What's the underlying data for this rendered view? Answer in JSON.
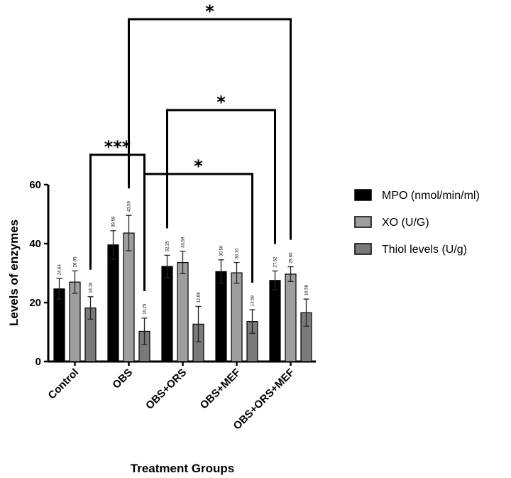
{
  "chart_data": {
    "type": "bar",
    "xlabel": "Treatment Groups",
    "ylabel": "Levels of enzymes",
    "ylim": [
      0,
      60
    ],
    "yticks": [
      "0",
      "20",
      "40",
      "60"
    ],
    "categories": [
      "Control",
      "OBS",
      "OBS+ORS",
      "OBS+MEF",
      "OBS+ORS+MEF"
    ],
    "series": [
      {
        "name": "MPO (nmol/min/ml)",
        "color": "#000000",
        "values": [
          24.64,
          39.58,
          32.25,
          30.5,
          27.52
        ],
        "errors": [
          3.5,
          4.8,
          3.8,
          4.0,
          3.2
        ],
        "labels": [
          "24.64",
          "39.58",
          "32.25",
          "30.50",
          "27.52"
        ]
      },
      {
        "name": "XO (U/G)",
        "color": "#9e9e9e",
        "values": [
          26.95,
          43.59,
          33.59,
          30.1,
          29.65
        ],
        "errors": [
          3.8,
          6.0,
          3.8,
          3.5,
          2.5
        ],
        "labels": [
          "26.95",
          "43.59",
          "33.59",
          "30.10",
          "29.65"
        ]
      },
      {
        "name": "Thiol levels (U/g)",
        "color": "#7a7a7a",
        "values": [
          18.18,
          10.25,
          12.68,
          13.58,
          16.58
        ],
        "errors": [
          3.8,
          4.5,
          6.0,
          4.0,
          4.6
        ],
        "labels": [
          "18.18",
          "10.25",
          "12.68",
          "13.58",
          "16.58"
        ]
      }
    ],
    "legend_position": "right",
    "significance": [
      {
        "label": "***",
        "from": {
          "category": 0,
          "series": 2
        },
        "to": {
          "category": 1,
          "series": 2
        },
        "level": 1
      },
      {
        "label": "*",
        "from": {
          "category": 1,
          "series": 2
        },
        "to": {
          "category": 3,
          "series": 2
        },
        "level": 2
      },
      {
        "label": "*",
        "from": {
          "category": 2,
          "series": 0
        },
        "to": {
          "category": 4,
          "series": 0
        },
        "level": 3
      },
      {
        "label": "*",
        "from": {
          "category": 1,
          "series": 1
        },
        "to": {
          "category": 4,
          "series": 1
        },
        "level": 4
      }
    ]
  }
}
